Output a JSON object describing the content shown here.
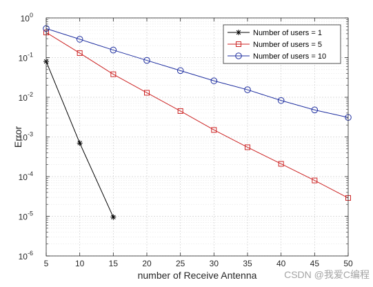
{
  "chart_data": {
    "type": "line",
    "xlabel": "number of Receive Antenna",
    "ylabel": "Error",
    "xlim": [
      5,
      50
    ],
    "ylim": [
      1e-06,
      1
    ],
    "yscale": "log",
    "grid": true,
    "minor_grid": true,
    "legend_position": "top-right",
    "x_ticks": [
      5,
      10,
      15,
      20,
      25,
      30,
      35,
      40,
      45,
      50
    ],
    "y_ticks": [
      {
        "value": 1e-06,
        "exp": "-6"
      },
      {
        "value": 1e-05,
        "exp": "-5"
      },
      {
        "value": 0.0001,
        "exp": "-4"
      },
      {
        "value": 0.001,
        "exp": "-3"
      },
      {
        "value": 0.01,
        "exp": "-2"
      },
      {
        "value": 0.1,
        "exp": "-1"
      },
      {
        "value": 1,
        "exp": "0"
      }
    ],
    "y_tick_base": "10",
    "series": [
      {
        "name": "Number of users = 1",
        "color": "#000000",
        "marker": "asterisk",
        "x": [
          5,
          10,
          15
        ],
        "y": [
          0.08,
          0.0007,
          9.5e-06
        ]
      },
      {
        "name": "Number of users = 5",
        "color": "#cc2222",
        "marker": "square",
        "x": [
          5,
          10,
          15,
          20,
          25,
          30,
          35,
          40,
          45,
          50
        ],
        "y": [
          0.43,
          0.13,
          0.038,
          0.013,
          0.0045,
          0.0015,
          0.00055,
          0.00021,
          8e-05,
          2.9e-05
        ]
      },
      {
        "name": "Number of users = 10",
        "color": "#1f2fa0",
        "marker": "circle",
        "x": [
          5,
          10,
          15,
          20,
          25,
          30,
          35,
          40,
          45,
          50
        ],
        "y": [
          0.54,
          0.29,
          0.155,
          0.085,
          0.047,
          0.026,
          0.0155,
          0.0083,
          0.0048,
          0.0031
        ]
      }
    ]
  },
  "watermark": "CSDN @我爱C编程"
}
